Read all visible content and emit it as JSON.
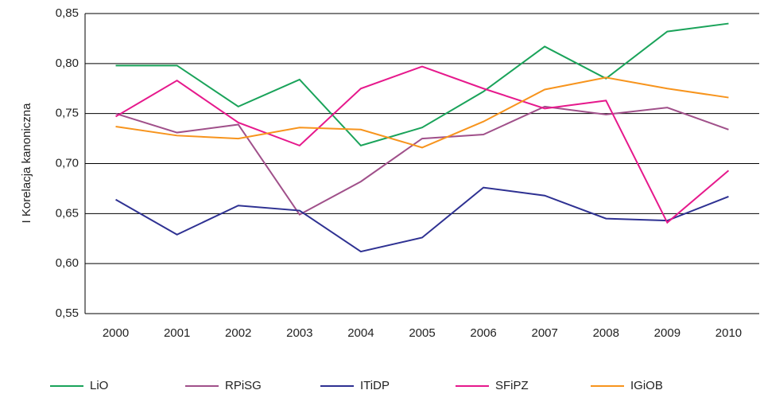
{
  "chart_data": {
    "type": "line",
    "y_label": "I Korelacja kanoniczna",
    "categories": [
      "2000",
      "2001",
      "2002",
      "2003",
      "2004",
      "2005",
      "2006",
      "2007",
      "2008",
      "2009",
      "2010"
    ],
    "series": [
      {
        "name": "LiO",
        "color": "#1aa35a",
        "values": [
          0.798,
          0.798,
          0.757,
          0.784,
          0.718,
          0.736,
          0.772,
          0.817,
          0.785,
          0.832,
          0.84
        ]
      },
      {
        "name": "RPiSG",
        "color": "#a0508a",
        "values": [
          0.75,
          0.731,
          0.739,
          0.649,
          0.682,
          0.725,
          0.729,
          0.757,
          0.749,
          0.756,
          0.734
        ]
      },
      {
        "name": "ITiDP",
        "color": "#2e3192",
        "values": [
          0.664,
          0.629,
          0.658,
          0.653,
          0.612,
          0.626,
          0.676,
          0.668,
          0.645,
          0.643,
          0.667
        ]
      },
      {
        "name": "SFiPZ",
        "color": "#e6198c",
        "values": [
          0.747,
          0.783,
          0.741,
          0.718,
          0.775,
          0.797,
          0.775,
          0.755,
          0.763,
          0.641,
          0.693
        ]
      },
      {
        "name": "IGiOB",
        "color": "#f7941d",
        "values": [
          0.737,
          0.728,
          0.725,
          0.736,
          0.734,
          0.716,
          0.742,
          0.774,
          0.786,
          0.775,
          0.766
        ]
      }
    ],
    "ylim": [
      0.55,
      0.85
    ],
    "yticks": [
      {
        "value": 0.55,
        "label": "0,55"
      },
      {
        "value": 0.6,
        "label": "0,60"
      },
      {
        "value": 0.65,
        "label": "0,65"
      },
      {
        "value": 0.7,
        "label": "0,70"
      },
      {
        "value": 0.75,
        "label": "0,75"
      },
      {
        "value": 0.8,
        "label": "0,80"
      },
      {
        "value": 0.85,
        "label": "0,85"
      }
    ],
    "grid": true,
    "legend": "bottom"
  }
}
